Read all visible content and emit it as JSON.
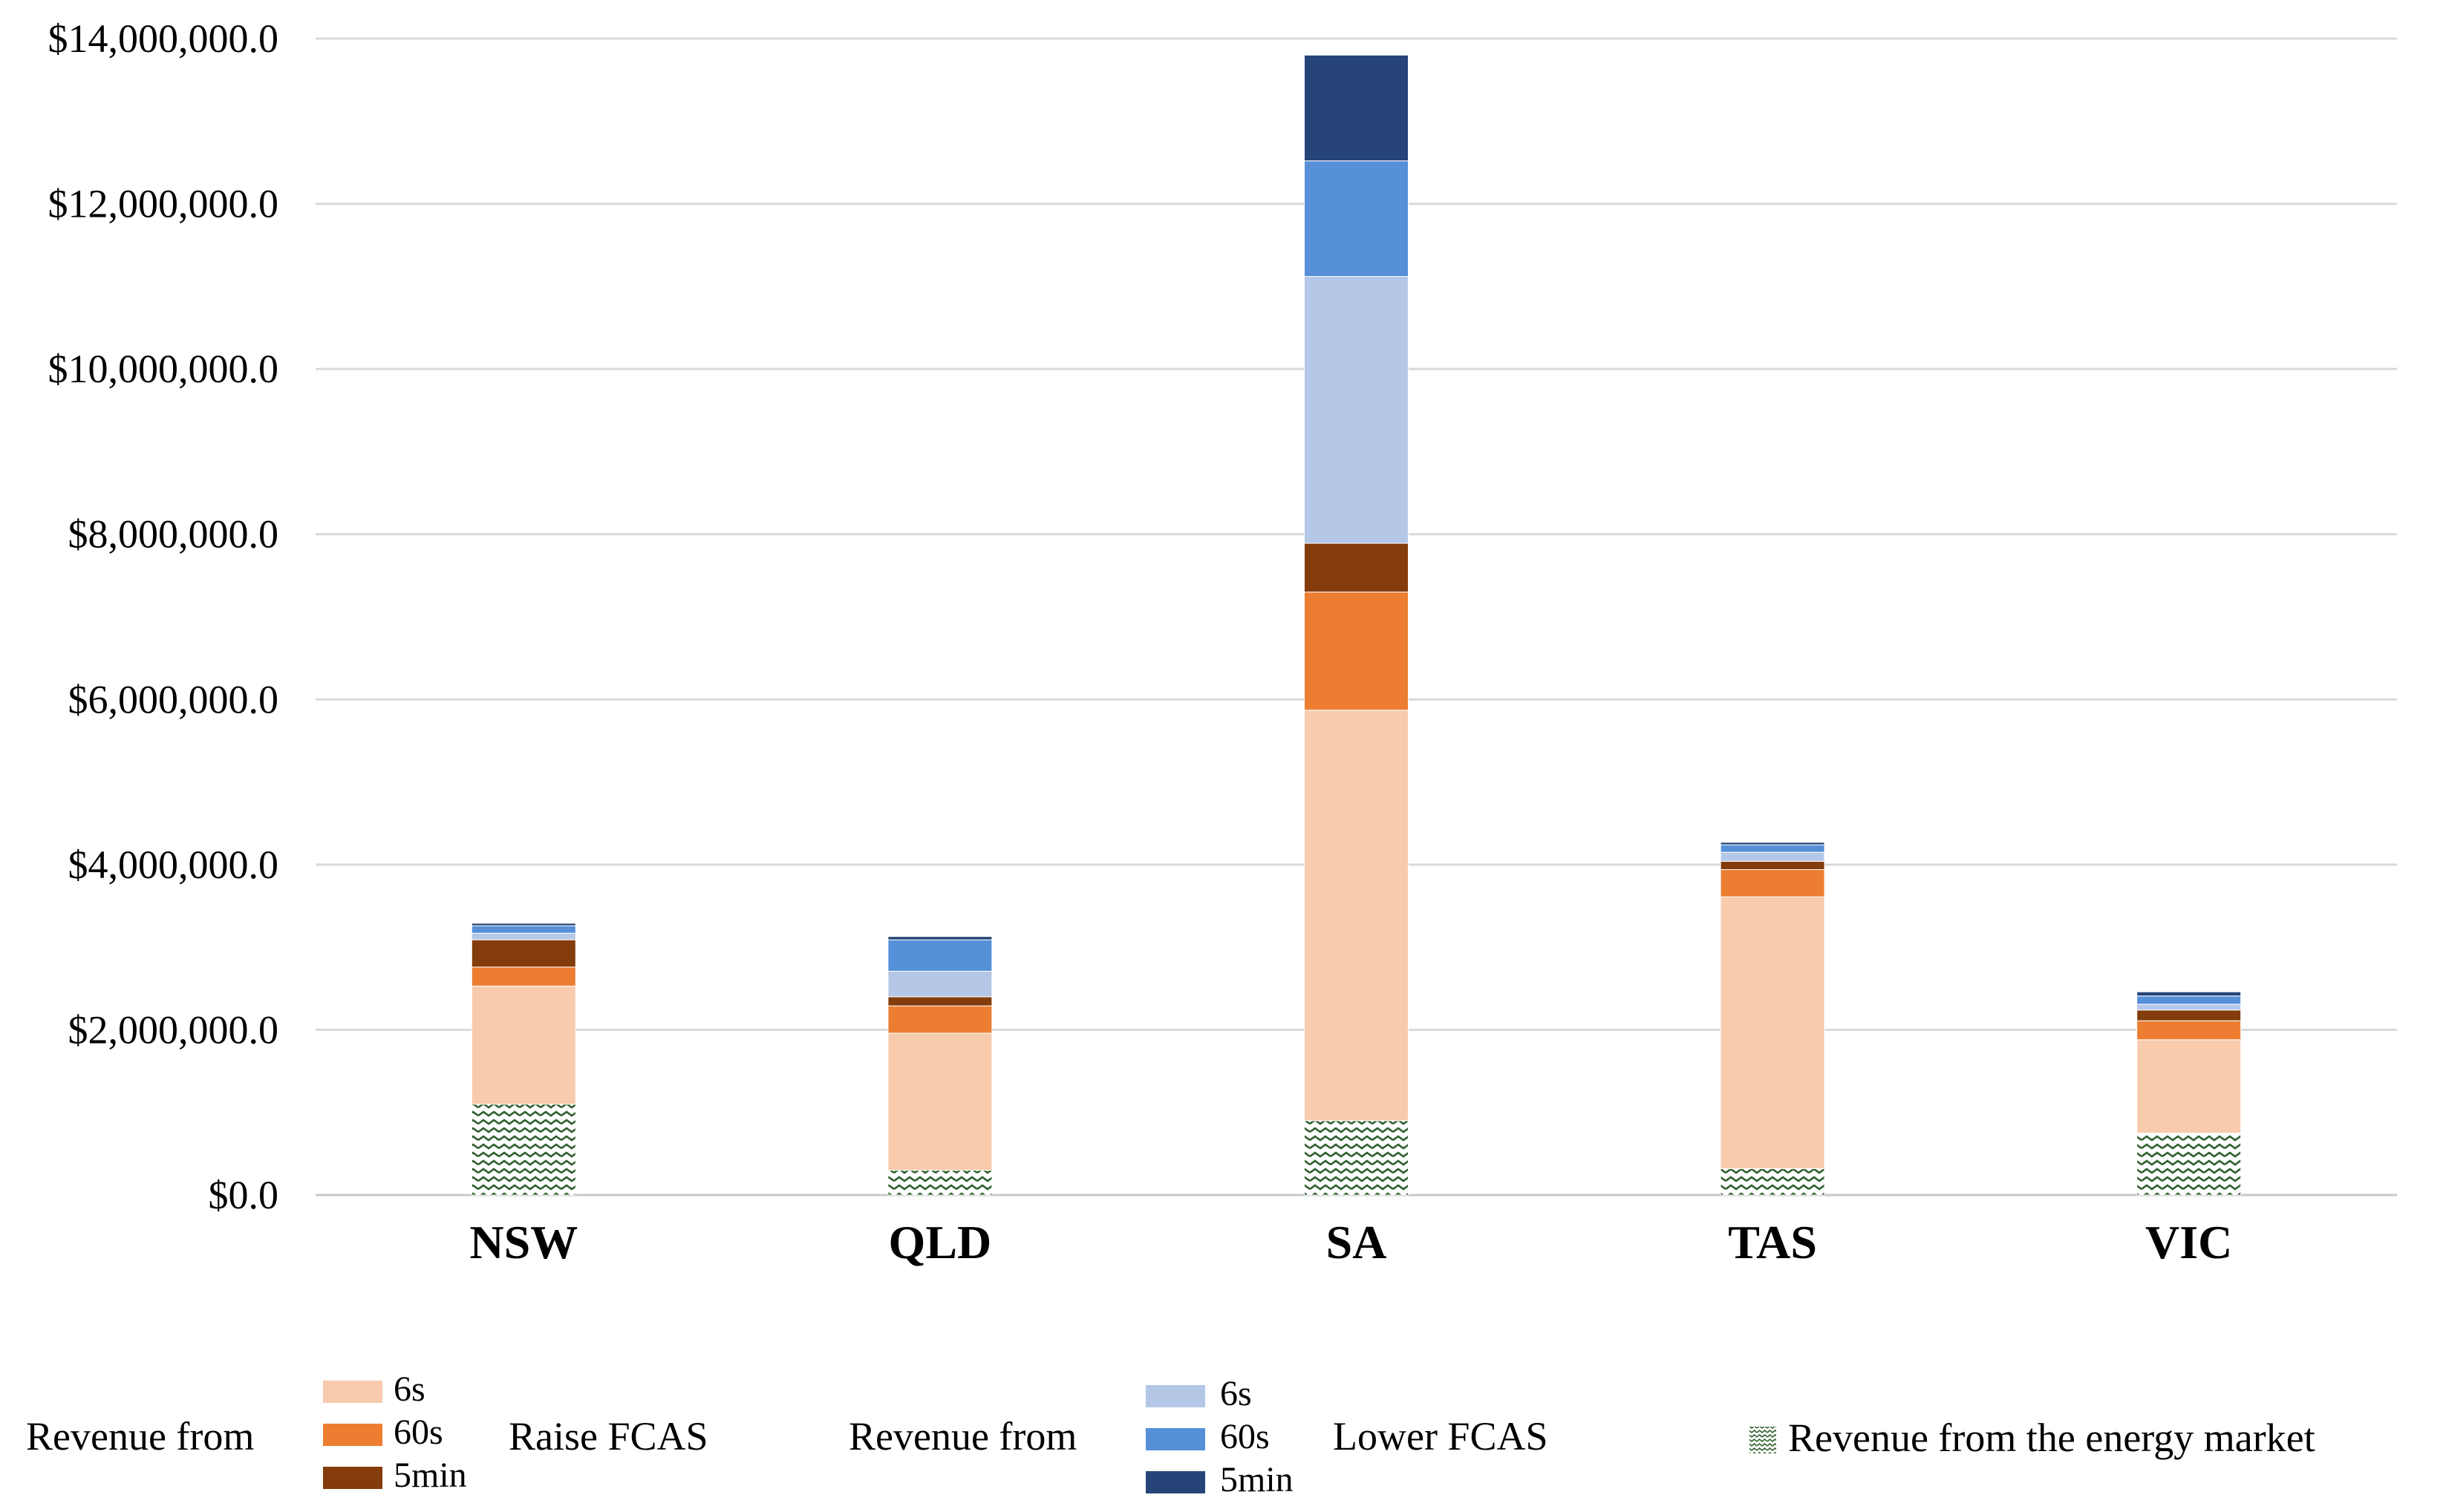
{
  "chart_data": {
    "type": "bar",
    "stacked": true,
    "categories": [
      "NSW",
      "QLD",
      "SA",
      "TAS",
      "VIC"
    ],
    "ylim": [
      0,
      14000000
    ],
    "yticks": [
      0,
      2000000,
      4000000,
      6000000,
      8000000,
      10000000,
      12000000,
      14000000
    ],
    "ytick_labels": [
      "$0.0",
      "$2,000,000.0",
      "$4,000,000.0",
      "$6,000,000.0",
      "$8,000,000.0",
      "$10,000,000.0",
      "$12,000,000.0",
      "$14,000,000.0"
    ],
    "grid": true,
    "legend_position": "bottom",
    "series": [
      {
        "name": "Revenue from the energy market",
        "color": "#2e5e2a",
        "pattern": "zigzag",
        "values": [
          1100000,
          300000,
          900000,
          320000,
          750000
        ]
      },
      {
        "name": "Raise FCAS 6s",
        "color": "#f8cbad",
        "values": [
          1430000,
          1660000,
          4970000,
          3290000,
          1130000
        ]
      },
      {
        "name": "Raise FCAS 60s",
        "color": "#ed7d31",
        "values": [
          230000,
          330000,
          1430000,
          330000,
          230000
        ]
      },
      {
        "name": "Raise FCAS 5min",
        "color": "#843c0c",
        "values": [
          330000,
          110000,
          590000,
          100000,
          130000
        ]
      },
      {
        "name": "Lower FCAS 6s",
        "color": "#b4c7e7",
        "values": [
          80000,
          310000,
          3230000,
          110000,
          70000
        ]
      },
      {
        "name": "Lower FCAS 60s",
        "color": "#5590d8",
        "values": [
          90000,
          380000,
          1400000,
          90000,
          100000
        ]
      },
      {
        "name": "Lower FCAS 5min",
        "color": "#264478",
        "values": [
          30000,
          40000,
          1280000,
          30000,
          50000
        ]
      }
    ]
  },
  "legend": {
    "raise_prefix": "Revenue from",
    "raise_suffix": "Raise FCAS",
    "raise_items": [
      "6s",
      "60s",
      "5min"
    ],
    "lower_prefix": "Revenue from",
    "lower_suffix": "Lower FCAS",
    "lower_items": [
      "6s",
      "60s",
      "5min"
    ],
    "energy_label": "Revenue from the energy market"
  }
}
